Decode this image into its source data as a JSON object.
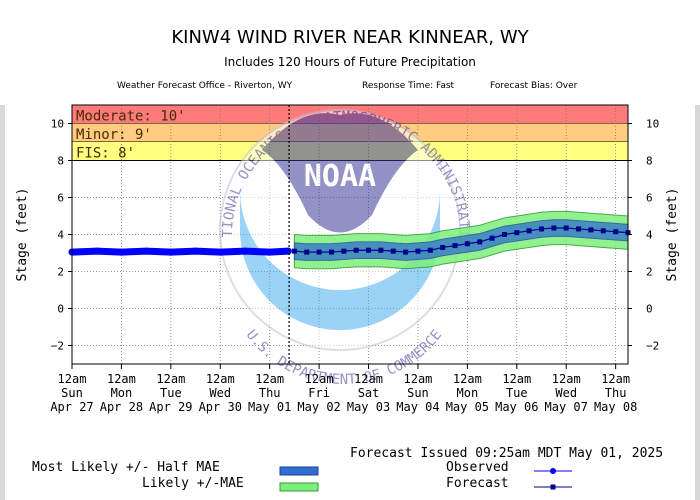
{
  "header": {
    "title": "KINW4 WIND RIVER NEAR KINNEAR, WY",
    "subtitle": "Includes 120 Hours of Future Precipitation",
    "office": "Weather Forecast Office - Riverton, WY",
    "response": "Response Time: Fast",
    "bias": "Forecast Bias:  Over"
  },
  "colors": {
    "moderate": "#ff7b7b",
    "minor": "#ffcc80",
    "fis": "#ffff80",
    "observed": "#0000ff",
    "forecast": "#00008b",
    "half_mae_band": "#2f6fd0",
    "mae_band": "#7cf07c"
  },
  "watermark": {
    "logo_text": "NOAA",
    "ring_top": "NATIONAL OCEANIC AND ATMOSPHERIC ADMINISTRATION",
    "ring_bottom": "U.S. DEPARTMENT OF COMMERCE"
  },
  "chart_data": {
    "type": "line",
    "ylabel": "Stage  (feet)",
    "ylim": [
      -3,
      11
    ],
    "yticks": [
      -2,
      0,
      2,
      4,
      6,
      8,
      10
    ],
    "grid": true,
    "xlim": [
      "2025-04-27T00:00",
      "2025-05-08T06:00"
    ],
    "xticks": [
      {
        "time": "2025-04-27T00:00",
        "l1": "12am",
        "l2": "Sun",
        "l3": "Apr 27"
      },
      {
        "time": "2025-04-28T00:00",
        "l1": "12am",
        "l2": "Mon",
        "l3": "Apr 28"
      },
      {
        "time": "2025-04-29T00:00",
        "l1": "12am",
        "l2": "Tue",
        "l3": "Apr 29"
      },
      {
        "time": "2025-04-30T00:00",
        "l1": "12am",
        "l2": "Wed",
        "l3": "Apr 30"
      },
      {
        "time": "2025-05-01T00:00",
        "l1": "12am",
        "l2": "Thu",
        "l3": "May 01"
      },
      {
        "time": "2025-05-02T00:00",
        "l1": "12am",
        "l2": "Fri",
        "l3": "May 02"
      },
      {
        "time": "2025-05-03T00:00",
        "l1": "12am",
        "l2": "Sat",
        "l3": "May 03"
      },
      {
        "time": "2025-05-04T00:00",
        "l1": "12am",
        "l2": "Sun",
        "l3": "May 04"
      },
      {
        "time": "2025-05-05T00:00",
        "l1": "12am",
        "l2": "Mon",
        "l3": "May 05"
      },
      {
        "time": "2025-05-06T00:00",
        "l1": "12am",
        "l2": "Tue",
        "l3": "May 06"
      },
      {
        "time": "2025-05-07T00:00",
        "l1": "12am",
        "l2": "Wed",
        "l3": "May 07"
      },
      {
        "time": "2025-05-08T00:00",
        "l1": "12am",
        "l2": "Thu",
        "l3": "May 08"
      }
    ],
    "flood_categories": [
      {
        "label": "Moderate: 10'",
        "from": 10,
        "to": 11,
        "color": "#ff7b7b"
      },
      {
        "label": "Minor: 9'",
        "from": 9,
        "to": 10,
        "color": "#ffcc80"
      },
      {
        "label": "FIS: 8'",
        "from": 8,
        "to": 9,
        "color": "#ffff80"
      }
    ],
    "issued_time": "2025-05-01T09:25",
    "observed": [
      {
        "t": "2025-04-27T00:00",
        "y": 3.05
      },
      {
        "t": "2025-04-27T12:00",
        "y": 3.1
      },
      {
        "t": "2025-04-28T00:00",
        "y": 3.05
      },
      {
        "t": "2025-04-28T12:00",
        "y": 3.1
      },
      {
        "t": "2025-04-29T00:00",
        "y": 3.05
      },
      {
        "t": "2025-04-29T12:00",
        "y": 3.1
      },
      {
        "t": "2025-04-30T00:00",
        "y": 3.05
      },
      {
        "t": "2025-04-30T12:00",
        "y": 3.1
      },
      {
        "t": "2025-05-01T00:00",
        "y": 3.05
      },
      {
        "t": "2025-05-01T09:00",
        "y": 3.1
      }
    ],
    "forecast": [
      {
        "t": "2025-05-01T12:00",
        "y": 3.1
      },
      {
        "t": "2025-05-01T18:00",
        "y": 3.05
      },
      {
        "t": "2025-05-02T00:00",
        "y": 3.05
      },
      {
        "t": "2025-05-02T06:00",
        "y": 3.05
      },
      {
        "t": "2025-05-02T12:00",
        "y": 3.1
      },
      {
        "t": "2025-05-02T18:00",
        "y": 3.15
      },
      {
        "t": "2025-05-03T00:00",
        "y": 3.15
      },
      {
        "t": "2025-05-03T06:00",
        "y": 3.15
      },
      {
        "t": "2025-05-03T12:00",
        "y": 3.1
      },
      {
        "t": "2025-05-03T18:00",
        "y": 3.05
      },
      {
        "t": "2025-05-04T00:00",
        "y": 3.1
      },
      {
        "t": "2025-05-04T06:00",
        "y": 3.15
      },
      {
        "t": "2025-05-04T12:00",
        "y": 3.3
      },
      {
        "t": "2025-05-04T18:00",
        "y": 3.4
      },
      {
        "t": "2025-05-05T00:00",
        "y": 3.5
      },
      {
        "t": "2025-05-05T06:00",
        "y": 3.6
      },
      {
        "t": "2025-05-05T12:00",
        "y": 3.8
      },
      {
        "t": "2025-05-05T18:00",
        "y": 4.0
      },
      {
        "t": "2025-05-06T00:00",
        "y": 4.1
      },
      {
        "t": "2025-05-06T06:00",
        "y": 4.2
      },
      {
        "t": "2025-05-06T12:00",
        "y": 4.3
      },
      {
        "t": "2025-05-06T18:00",
        "y": 4.35
      },
      {
        "t": "2025-05-07T00:00",
        "y": 4.35
      },
      {
        "t": "2025-05-07T06:00",
        "y": 4.3
      },
      {
        "t": "2025-05-07T12:00",
        "y": 4.25
      },
      {
        "t": "2025-05-07T18:00",
        "y": 4.2
      },
      {
        "t": "2025-05-08T00:00",
        "y": 4.15
      },
      {
        "t": "2025-05-08T06:00",
        "y": 4.1
      }
    ],
    "band_half_mae": 0.45,
    "band_mae": 0.9,
    "legend": {
      "issued": "Forecast Issued 09:25am MDT May 01, 2025",
      "half_mae": "Most Likely +/- Half MAE",
      "mae": "Likely +/-MAE",
      "observed": "Observed",
      "forecast": "Forecast"
    }
  }
}
